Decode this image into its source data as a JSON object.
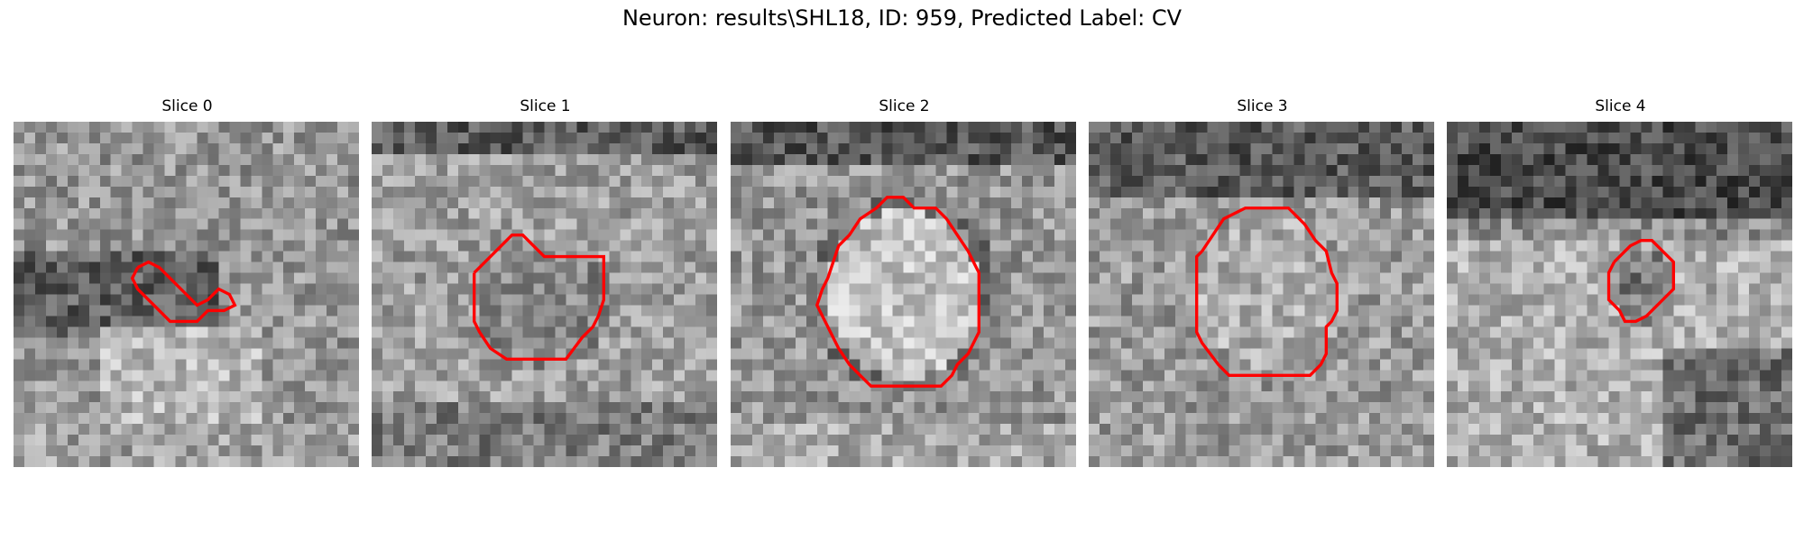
{
  "title": "Neuron: results\\SHL18, ID: 959, Predicted Label: CV",
  "panels": [
    {
      "label": "Slice 0",
      "contour_color": "#ff0000"
    },
    {
      "label": "Slice 1",
      "contour_color": "#ff0000"
    },
    {
      "label": "Slice 2",
      "contour_color": "#ff0000"
    },
    {
      "label": "Slice 3",
      "contour_color": "#ff0000"
    },
    {
      "label": "Slice 4",
      "contour_color": "#ff0000"
    }
  ]
}
